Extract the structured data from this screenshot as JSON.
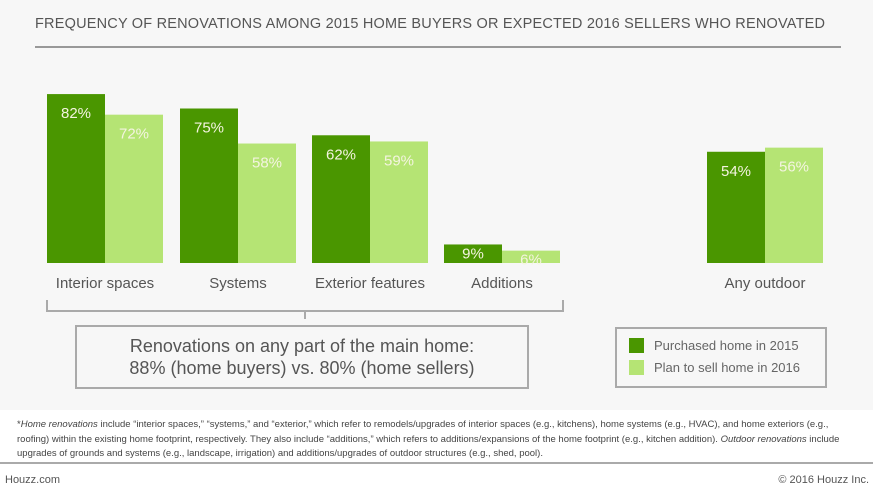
{
  "chart_data": {
    "type": "bar",
    "title": "FREQUENCY OF RENOVATIONS AMONG 2015 HOME BUYERS OR EXPECTED 2016 SELLERS WHO RENOVATED",
    "categories": [
      "Interior spaces",
      "Systems",
      "Exterior features",
      "Additions",
      "Any outdoor"
    ],
    "series": [
      {
        "name": "Purchased home in 2015",
        "color": "#4a9600",
        "values": [
          82,
          75,
          62,
          9,
          54
        ],
        "labels": [
          "82%",
          "75%",
          "62%",
          "9%",
          "54%"
        ]
      },
      {
        "name": "Plan to sell home in 2016",
        "color": "#b5e474",
        "values": [
          72,
          58,
          59,
          6,
          56
        ],
        "labels": [
          "72%",
          "58%",
          "59%",
          "6%",
          "56%"
        ]
      }
    ],
    "ylim": [
      0,
      100
    ],
    "unit": "%",
    "grid": false,
    "legend_position": "bottom-right",
    "annotation": {
      "line1": "Renovations on any part of the main home:",
      "line2": "88% (home buyers) vs. 80% (home sellers)"
    }
  },
  "footnote": {
    "star": "*",
    "home_term": "Home renovations",
    "part1": " include “interior spaces,” “systems,” and “exterior,” which refer to remodels/upgrades of interior spaces (e.g., kitchens), home systems (e.g., HVAC), and home exteriors (e.g., roofing) within the existing home footprint, respectively. They also include “additions,” which refers to additions/expansions of the home footprint (e.g., kitchen addition). ",
    "outdoor_term": "Outdoor renovations",
    "part2": " include upgrades of grounds and systems (e.g., landscape, irrigation) and additions/upgrades of outdoor structures (e.g., shed, pool)."
  },
  "footer": {
    "left": "Houzz.com",
    "right": "© 2016 Houzz Inc."
  }
}
